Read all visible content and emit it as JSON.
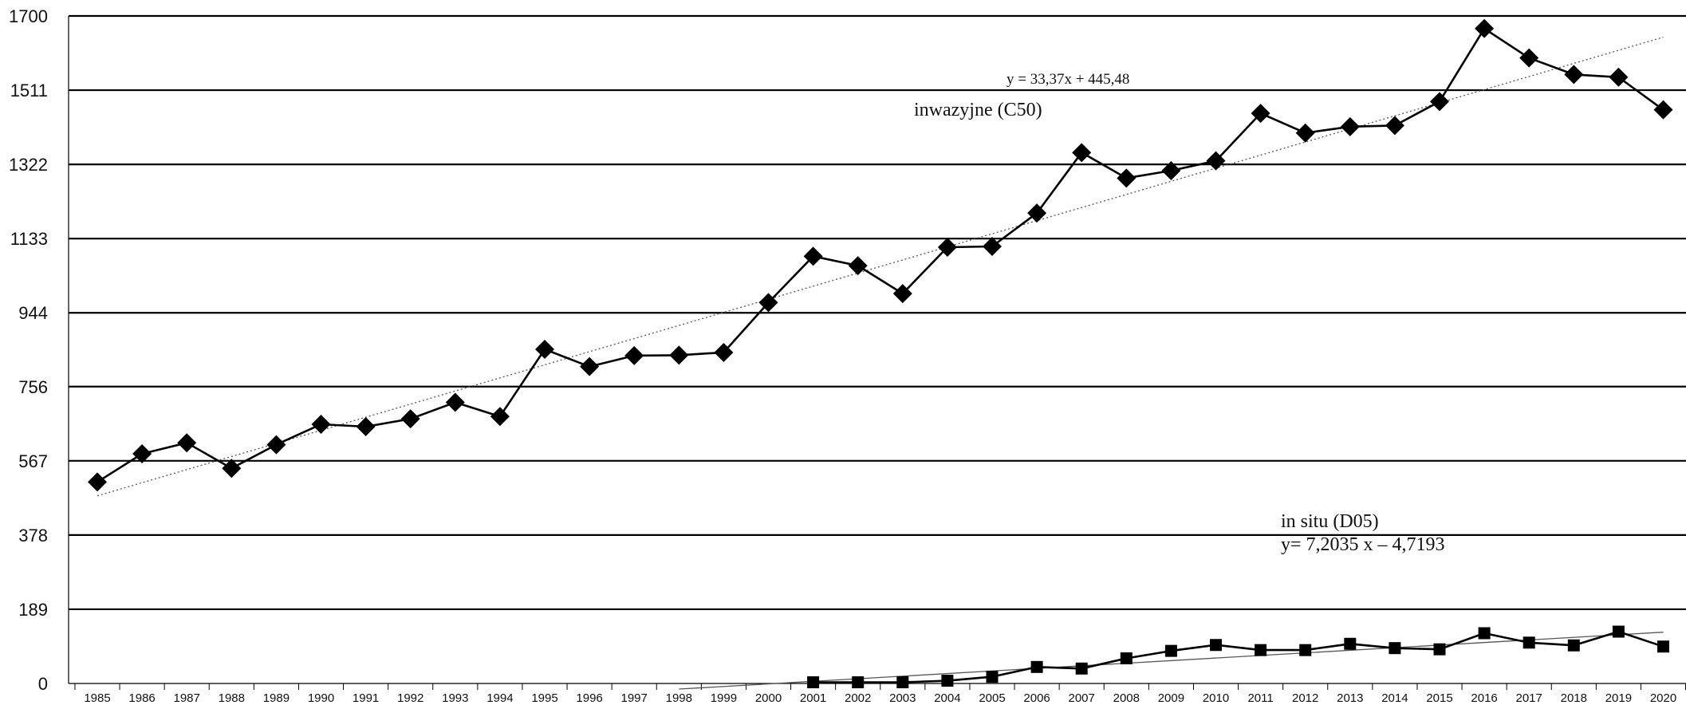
{
  "chart_data": {
    "type": "line",
    "title": "",
    "xlabel": "",
    "ylabel": "",
    "ylim": [
      0,
      1700
    ],
    "y_ticks": [
      "0",
      "189",
      "378",
      "567",
      "756",
      "944",
      "1133",
      "1322",
      "1511",
      "1700"
    ],
    "x_ticks": [
      "1985",
      "1986",
      "1987",
      "1988",
      "1989",
      "1990",
      "1991",
      "1992",
      "1993",
      "1994",
      "1995",
      "1996",
      "1997",
      "1998",
      "1999",
      "2000",
      "2001",
      "2002",
      "2003",
      "2004",
      "2005",
      "2006",
      "2007",
      "2008",
      "2009",
      "2010",
      "2011",
      "2012",
      "2013",
      "2014",
      "2015",
      "2016",
      "2017",
      "2018",
      "2019",
      "2020"
    ],
    "grid": "horizontal",
    "series": [
      {
        "name": "inwazyjne (C50)",
        "marker": "diamond",
        "x": [
          1985,
          1986,
          1987,
          1988,
          1989,
          1990,
          1991,
          1992,
          1993,
          1994,
          1995,
          1996,
          1997,
          1998,
          1999,
          2000,
          2001,
          2002,
          2003,
          2004,
          2005,
          2006,
          2007,
          2008,
          2009,
          2010,
          2011,
          2012,
          2013,
          2014,
          2015,
          2016,
          2017,
          2018,
          2019,
          2020
        ],
        "values": [
          513,
          585,
          613,
          548,
          608,
          660,
          654,
          674,
          716,
          680,
          851,
          807,
          835,
          836,
          843,
          970,
          1088,
          1064,
          993,
          1111,
          1113,
          1198,
          1352,
          1287,
          1306,
          1331,
          1452,
          1402,
          1418,
          1421,
          1482,
          1668,
          1593,
          1551,
          1544,
          1461
        ],
        "trendline": {
          "equation": "y = 33,37x + 445,48",
          "from_x": 1985,
          "to_x": 2020,
          "style": "dotted"
        }
      },
      {
        "name": "in situ (D05)",
        "marker": "square",
        "x": [
          2001,
          2002,
          2003,
          2004,
          2005,
          2006,
          2007,
          2008,
          2009,
          2010,
          2011,
          2012,
          2013,
          2014,
          2015,
          2016,
          2017,
          2018,
          2019,
          2020
        ],
        "values": [
          3,
          3,
          3,
          7,
          17,
          42,
          38,
          64,
          83,
          98,
          85,
          85,
          101,
          90,
          87,
          128,
          104,
          97,
          132,
          94
        ],
        "trendline": {
          "equation": "y= 7,2035 x – 4,7193",
          "from_x": 1998,
          "to_x": 2020,
          "style": "solid"
        }
      }
    ],
    "annotations": {
      "c50_equation": "y = 33,37x + 445,48",
      "c50_label": "inwazyjne (C50)",
      "d05_label": "in situ (D05)",
      "d05_equation": "y= 7,2035 x – 4,7193"
    },
    "colors": {
      "line": "#000000",
      "grid": "#000000",
      "trend": "#555555"
    }
  }
}
